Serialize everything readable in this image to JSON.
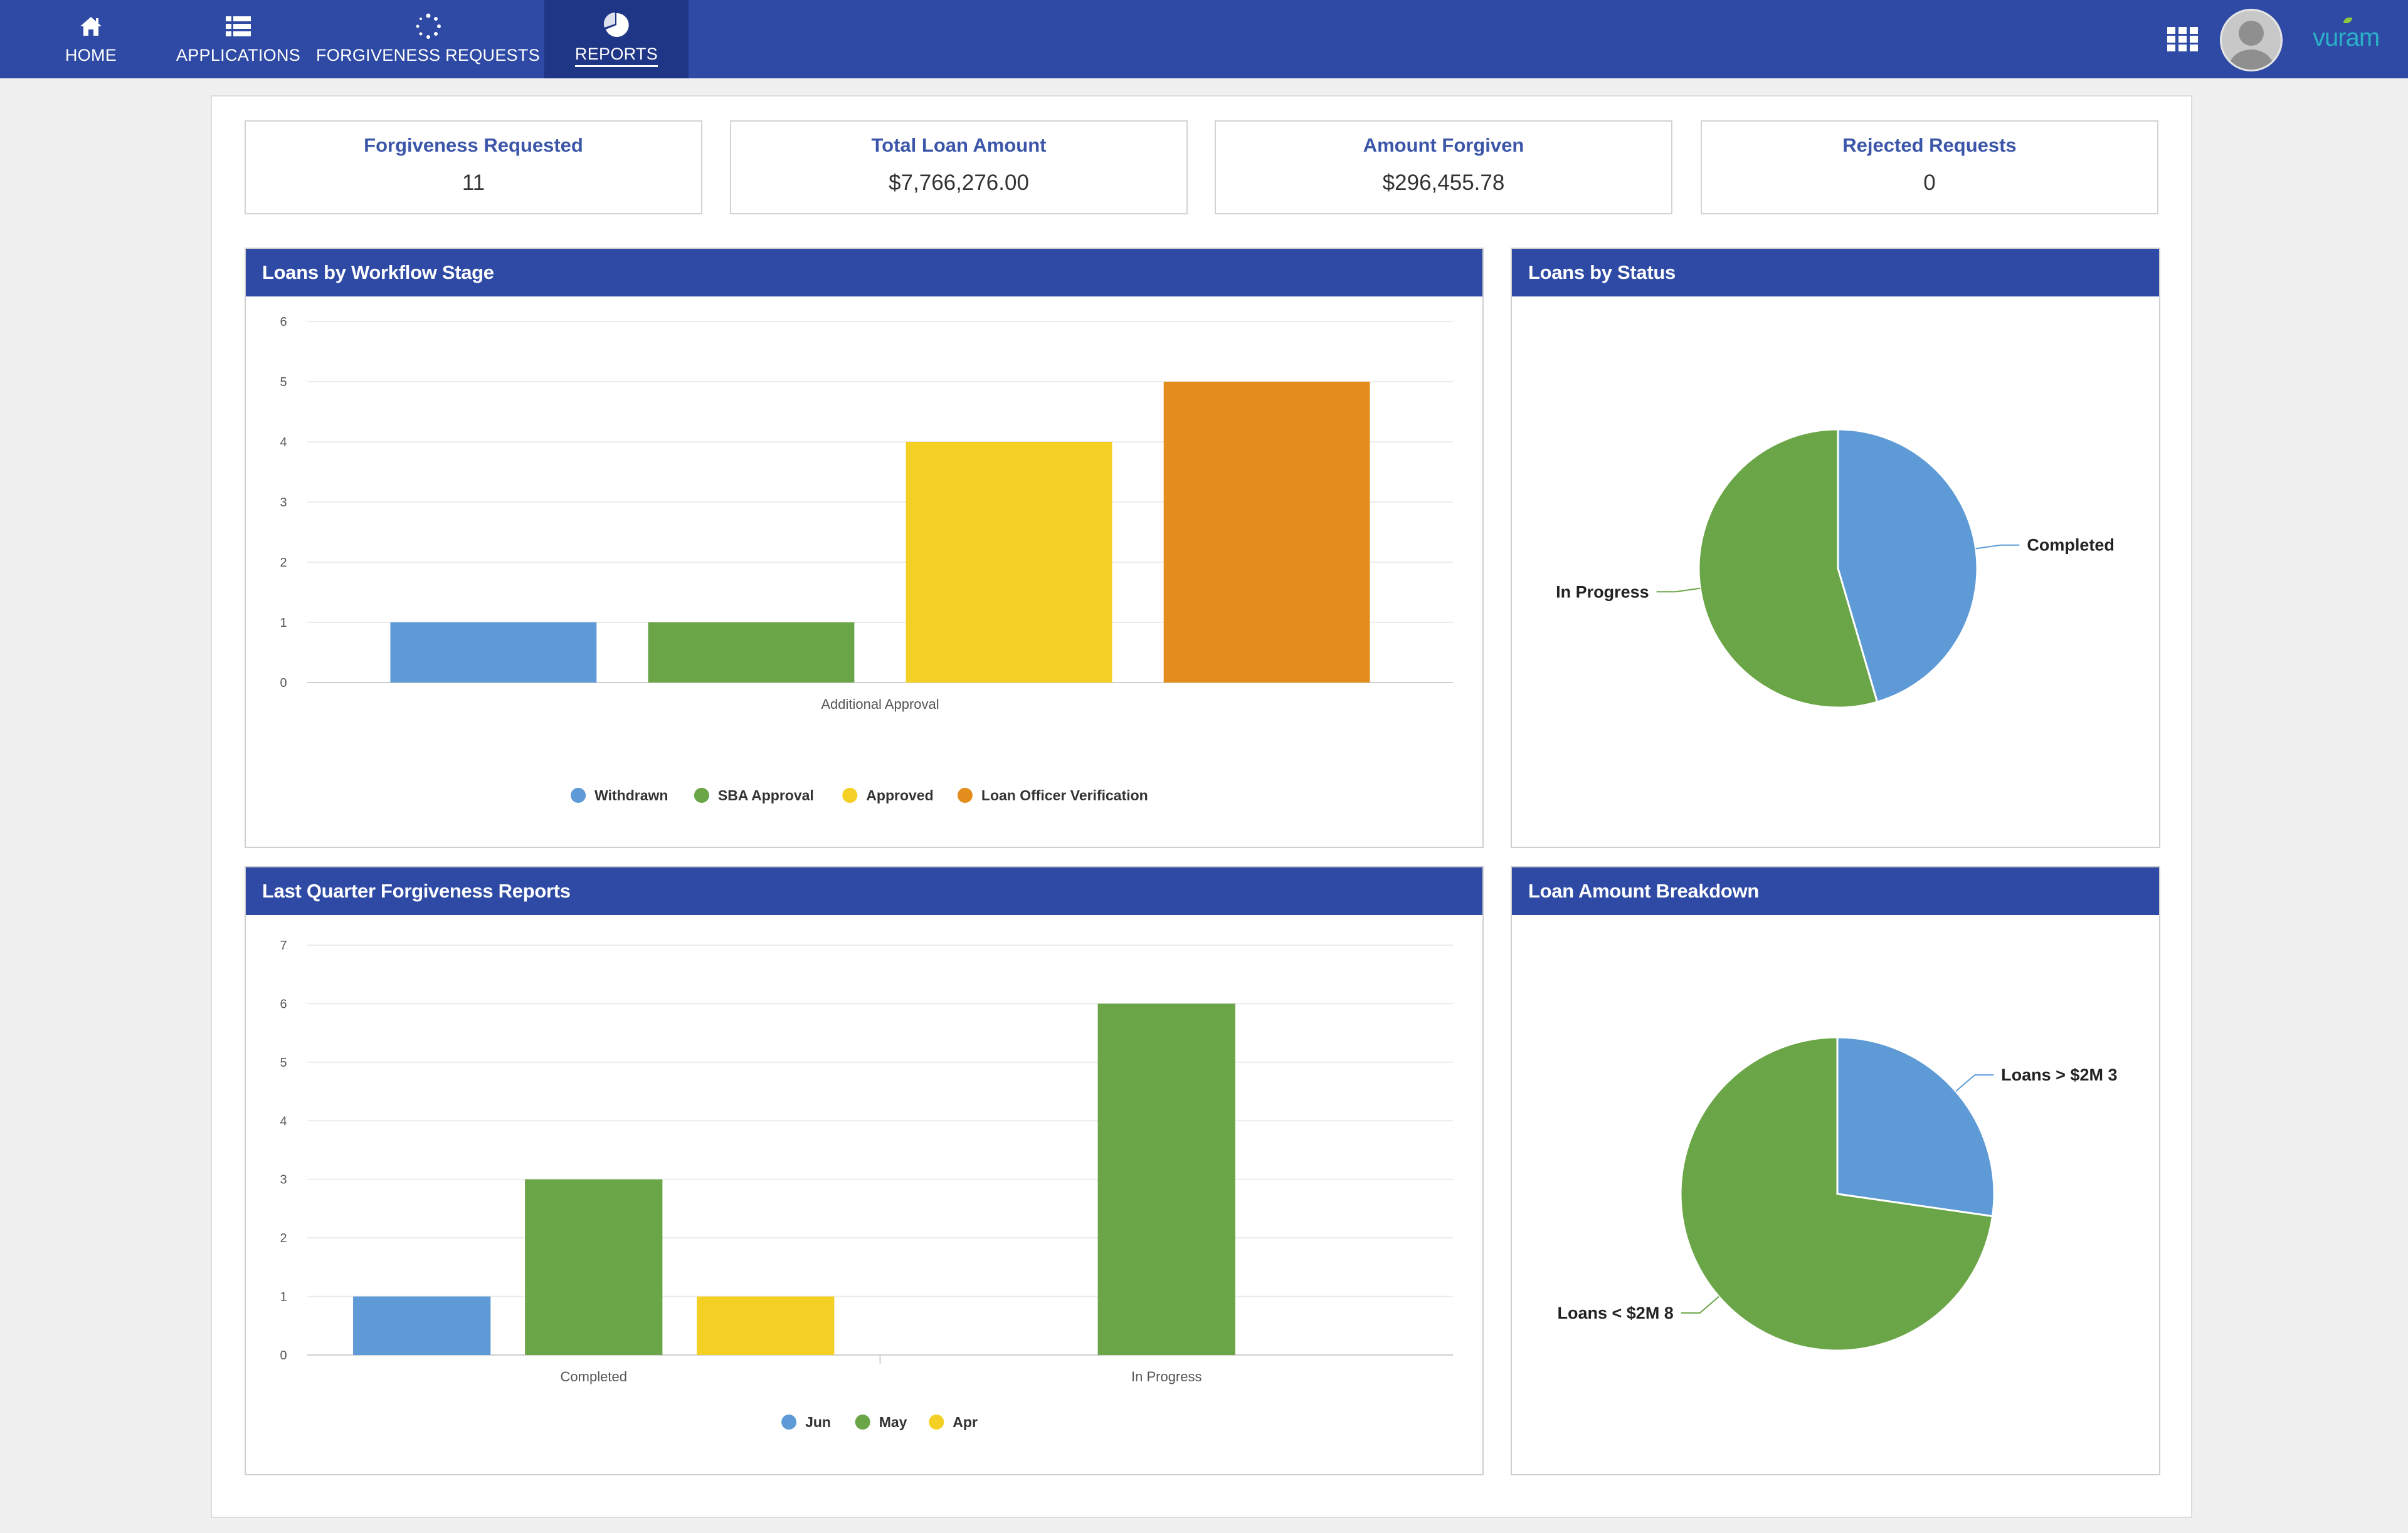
{
  "nav": {
    "items": [
      {
        "label": "HOME",
        "icon": "home-icon"
      },
      {
        "label": "APPLICATIONS",
        "icon": "list-icon"
      },
      {
        "label": "FORGIVENESS REQUESTS",
        "icon": "spinner-icon"
      },
      {
        "label": "REPORTS",
        "icon": "pie-chart-icon",
        "active": true
      }
    ],
    "logo_text": "vuram"
  },
  "kpis": [
    {
      "title": "Forgiveness Requested",
      "value": "11"
    },
    {
      "title": "Total Loan Amount",
      "value": "$7,766,276.00"
    },
    {
      "title": "Amount Forgiven",
      "value": "$296,455.78"
    },
    {
      "title": "Rejected Requests",
      "value": "0"
    }
  ],
  "panels": {
    "workflow": "Loans by Workflow Stage",
    "status": "Loans by Status",
    "quarter": "Last Quarter Forgiveness Reports",
    "breakdown": "Loan Amount Breakdown"
  },
  "colors": {
    "blue": "#5e9bd6",
    "green": "#6aa547",
    "yellow": "#f4d025",
    "orange": "#e28d1c",
    "nav": "#2e4aa4"
  },
  "chart_data": [
    {
      "type": "bar",
      "title": "Loans by Workflow Stage",
      "categories": [
        "Additional Approval"
      ],
      "series": [
        {
          "name": "Withdrawn",
          "values": [
            1
          ],
          "color": "#5e9bd6"
        },
        {
          "name": "SBA Approval",
          "values": [
            1
          ],
          "color": "#6aa547"
        },
        {
          "name": "Approved",
          "values": [
            4
          ],
          "color": "#f4d025"
        },
        {
          "name": "Loan Officer Verification",
          "values": [
            5
          ],
          "color": "#e28d1c"
        }
      ],
      "yticks": [
        "0",
        "1",
        "2",
        "3",
        "4",
        "5",
        "6"
      ],
      "ylim": [
        0,
        6
      ],
      "legend": "bottom"
    },
    {
      "type": "pie",
      "title": "Loans by Status",
      "slices": [
        {
          "label": "Completed",
          "value": 5,
          "color": "#5e9bd6"
        },
        {
          "label": "In Progress",
          "value": 6,
          "color": "#6aa547"
        }
      ]
    },
    {
      "type": "bar",
      "title": "Last Quarter Forgiveness Reports",
      "categories": [
        "Completed",
        "In Progress"
      ],
      "series": [
        {
          "name": "Jun",
          "values": [
            1,
            0
          ],
          "color": "#5e9bd6"
        },
        {
          "name": "May",
          "values": [
            3,
            6
          ],
          "color": "#6aa547"
        },
        {
          "name": "Apr",
          "values": [
            1,
            0
          ],
          "color": "#f4d025"
        }
      ],
      "yticks": [
        "0",
        "1",
        "2",
        "3",
        "4",
        "5",
        "6",
        "7"
      ],
      "ylim": [
        0,
        7
      ],
      "legend": "bottom"
    },
    {
      "type": "pie",
      "title": "Loan Amount Breakdown",
      "slices": [
        {
          "label": "Loans > $2M 3",
          "value": 3,
          "color": "#5e9bd6"
        },
        {
          "label": "Loans < $2M 8",
          "value": 8,
          "color": "#6aa547"
        }
      ]
    }
  ]
}
